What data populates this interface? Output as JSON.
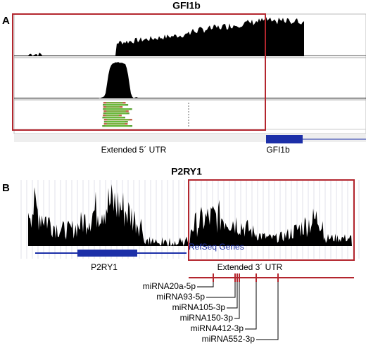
{
  "panel_a": {
    "label": "A",
    "title": "GFI1b",
    "region_label": "Extended 5´ UTR",
    "gene_label": "GFI1b"
  },
  "panel_b": {
    "label": "B",
    "title": "P2RY1",
    "track_label": "RefSeq Genes",
    "gene_label": "P2RY1",
    "region_label": "Extended 3´ UTR",
    "mirnas": [
      "miRNA20a-5p",
      "miRNA93-5p",
      "miRNA105-3p",
      "miRNA150-3p",
      "miRNA412-3p",
      "miRNA552-3p"
    ]
  }
}
